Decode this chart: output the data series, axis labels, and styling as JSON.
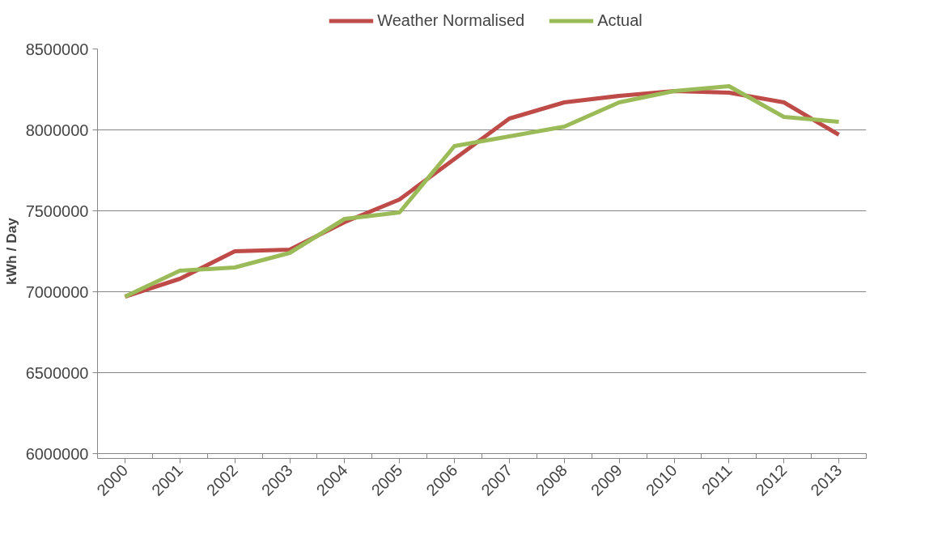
{
  "chart_data": {
    "type": "line",
    "ylabel": "kWh / Day",
    "categories": [
      "2000",
      "2001",
      "2002",
      "2003",
      "2004",
      "2005",
      "2006",
      "2007",
      "2008",
      "2009",
      "2010",
      "2011",
      "2012",
      "2013"
    ],
    "series": [
      {
        "name": "Weather Normalised",
        "color": "#be4b48",
        "values": [
          6970000,
          7080000,
          7250000,
          7260000,
          7430000,
          7570000,
          7820000,
          8070000,
          8170000,
          8210000,
          8240000,
          8230000,
          8170000,
          7970000
        ]
      },
      {
        "name": "Actual",
        "color": "#9bbb59",
        "values": [
          6970000,
          7130000,
          7150000,
          7240000,
          7450000,
          7490000,
          7900000,
          7960000,
          8020000,
          8170000,
          8240000,
          8270000,
          8080000,
          8050000
        ]
      }
    ],
    "ylim": [
      6000000,
      8500000
    ],
    "yticks": [
      6000000,
      6500000,
      7000000,
      7500000,
      8000000,
      8500000
    ],
    "grid": "y",
    "legend": "top",
    "marker": "none",
    "line_style": "solid"
  }
}
